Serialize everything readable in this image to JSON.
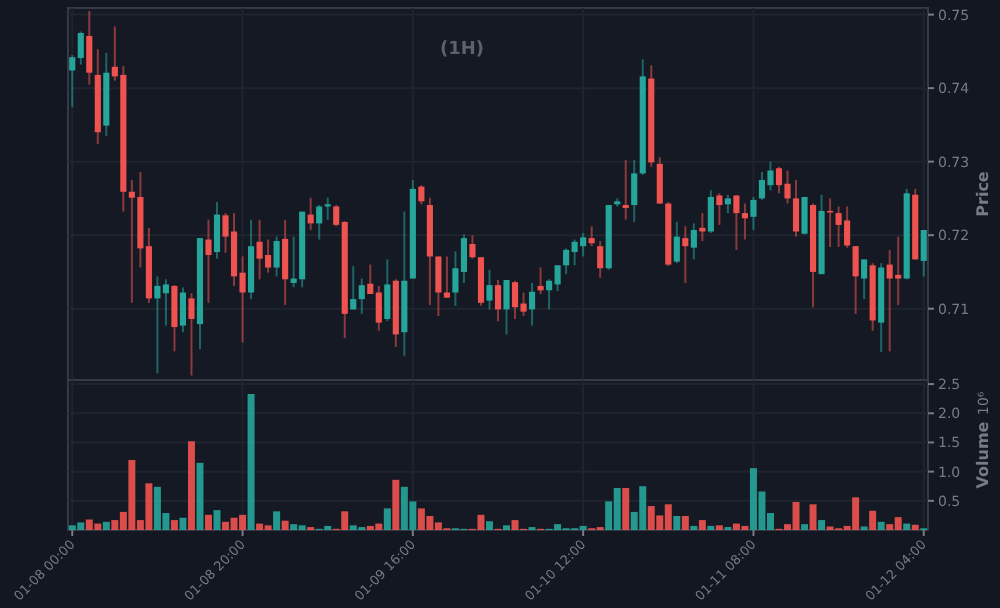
{
  "chart_data": [
    {
      "type": "candlestick",
      "title": "(1H)",
      "ylabel": "Price",
      "grid": true,
      "tick_labels": "y",
      "categories": [
        null,
        null,
        null,
        null,
        null,
        null,
        null,
        null,
        null,
        null,
        null,
        null,
        null,
        null,
        null,
        null,
        null,
        null,
        null,
        null,
        null,
        null,
        null,
        null,
        null,
        null,
        null,
        null,
        null,
        null,
        null,
        null,
        null,
        null,
        null,
        null,
        null,
        null,
        null,
        null,
        null,
        null,
        null,
        null,
        null,
        null,
        null,
        null,
        null,
        null,
        null,
        null,
        null,
        null,
        null,
        null,
        null,
        null,
        null,
        null,
        null,
        null,
        null,
        null,
        null,
        null,
        null,
        null,
        null,
        null,
        null,
        null,
        null,
        null,
        null,
        null,
        null,
        null,
        null,
        null,
        null,
        null,
        null,
        null,
        null,
        null,
        null,
        null,
        null,
        null,
        null,
        null,
        null,
        null,
        null,
        null,
        null,
        null,
        null,
        null,
        null
      ],
      "ylim": [
        0.7003,
        0.7509
      ],
      "yticks": [
        0.71,
        0.72,
        0.73,
        0.74,
        0.75
      ],
      "ohlc": [
        [
          0.7424,
          0.7445,
          0.7374,
          0.7442
        ],
        [
          0.7441,
          0.7477,
          0.7432,
          0.7475
        ],
        [
          0.7471,
          0.7505,
          0.7405,
          0.7421
        ],
        [
          0.7418,
          0.7453,
          0.7324,
          0.734
        ],
        [
          0.7349,
          0.7448,
          0.7335,
          0.7421
        ],
        [
          0.7429,
          0.7484,
          0.741,
          0.7416
        ],
        [
          0.7418,
          0.743,
          0.7232,
          0.7259
        ],
        [
          0.7259,
          0.7275,
          0.7108,
          0.7251
        ],
        [
          0.7252,
          0.7286,
          0.7156,
          0.7182
        ],
        [
          0.7185,
          0.721,
          0.7108,
          0.7114
        ],
        [
          0.7114,
          0.7144,
          0.7012,
          0.7131
        ],
        [
          0.7121,
          0.714,
          0.7077,
          0.7133
        ],
        [
          0.7131,
          0.7132,
          0.7042,
          0.7075
        ],
        [
          0.7077,
          0.7129,
          0.7068,
          0.7122
        ],
        [
          0.7114,
          0.7121,
          0.7009,
          0.7086
        ],
        [
          0.7079,
          0.7196,
          0.7045,
          0.7196
        ],
        [
          0.7194,
          0.7221,
          0.7108,
          0.7173
        ],
        [
          0.7177,
          0.7245,
          0.7168,
          0.7228
        ],
        [
          0.7227,
          0.723,
          0.7176,
          0.7198
        ],
        [
          0.7205,
          0.723,
          0.7131,
          0.7144
        ],
        [
          0.7149,
          0.7171,
          0.7054,
          0.7122
        ],
        [
          0.7122,
          0.7221,
          0.7113,
          0.7185
        ],
        [
          0.7191,
          0.7221,
          0.714,
          0.7168
        ],
        [
          0.7173,
          0.7194,
          0.7149,
          0.7156
        ],
        [
          0.7156,
          0.7198,
          0.7144,
          0.7192
        ],
        [
          0.7195,
          0.7221,
          0.7105,
          0.714
        ],
        [
          0.7135,
          0.7198,
          0.7129,
          0.7141
        ],
        [
          0.714,
          0.7232,
          0.7129,
          0.7232
        ],
        [
          0.7228,
          0.7251,
          0.7207,
          0.7216
        ],
        [
          0.7216,
          0.7241,
          0.7194,
          0.7239
        ],
        [
          0.7239,
          0.7251,
          0.7221,
          0.7242
        ],
        [
          0.7239,
          0.7241,
          0.7212,
          0.7214
        ],
        [
          0.7218,
          0.7219,
          0.706,
          0.7093
        ],
        [
          0.7099,
          0.7158,
          0.7099,
          0.7113
        ],
        [
          0.7113,
          0.7141,
          0.7093,
          0.7132
        ],
        [
          0.7134,
          0.716,
          0.712,
          0.712
        ],
        [
          0.7122,
          0.7131,
          0.707,
          0.7081
        ],
        [
          0.7086,
          0.7167,
          0.7083,
          0.7133
        ],
        [
          0.7138,
          0.714,
          0.7048,
          0.7065
        ],
        [
          0.7068,
          0.7232,
          0.7036,
          0.7138
        ],
        [
          0.7141,
          0.7275,
          0.7141,
          0.7263
        ],
        [
          0.7266,
          0.7268,
          0.7242,
          0.7246
        ],
        [
          0.7241,
          0.7251,
          0.7105,
          0.7171
        ],
        [
          0.7171,
          0.7171,
          0.709,
          0.7122
        ],
        [
          0.7122,
          0.7171,
          0.7115,
          0.7115
        ],
        [
          0.7122,
          0.7178,
          0.7104,
          0.7155
        ],
        [
          0.715,
          0.7201,
          0.7135,
          0.7196
        ],
        [
          0.7188,
          0.72,
          0.7168,
          0.717
        ],
        [
          0.717,
          0.717,
          0.7104,
          0.7108
        ],
        [
          0.7111,
          0.7153,
          0.7099,
          0.7132
        ],
        [
          0.7132,
          0.7139,
          0.7083,
          0.7099
        ],
        [
          0.7099,
          0.7139,
          0.7065,
          0.7139
        ],
        [
          0.7136,
          0.7138,
          0.7086,
          0.7102
        ],
        [
          0.7107,
          0.7122,
          0.709,
          0.7096
        ],
        [
          0.7099,
          0.7135,
          0.7077,
          0.7123
        ],
        [
          0.7131,
          0.7156,
          0.712,
          0.7125
        ],
        [
          0.7125,
          0.714,
          0.7099,
          0.7138
        ],
        [
          0.7133,
          0.7159,
          0.7124,
          0.7159
        ],
        [
          0.7159,
          0.7182,
          0.7147,
          0.718
        ],
        [
          0.7177,
          0.7194,
          0.7159,
          0.7191
        ],
        [
          0.7185,
          0.7203,
          0.7171,
          0.7197
        ],
        [
          0.7196,
          0.7212,
          0.7185,
          0.7189
        ],
        [
          0.7185,
          0.7192,
          0.7142,
          0.7155
        ],
        [
          0.7155,
          0.7241,
          0.7153,
          0.7241
        ],
        [
          0.7242,
          0.725,
          0.7239,
          0.7246
        ],
        [
          0.7241,
          0.7302,
          0.7221,
          0.7237
        ],
        [
          0.7241,
          0.7302,
          0.7218,
          0.7284
        ],
        [
          0.7284,
          0.7439,
          0.7282,
          0.7416
        ],
        [
          0.7413,
          0.7431,
          0.7293,
          0.7299
        ],
        [
          0.7297,
          0.7306,
          0.7243,
          0.7243
        ],
        [
          0.7243,
          0.7245,
          0.7158,
          0.716
        ],
        [
          0.7164,
          0.7218,
          0.7162,
          0.7198
        ],
        [
          0.7196,
          0.7212,
          0.7135,
          0.7185
        ],
        [
          0.7183,
          0.7216,
          0.7167,
          0.7207
        ],
        [
          0.721,
          0.723,
          0.7192,
          0.7205
        ],
        [
          0.7205,
          0.7261,
          0.7203,
          0.7252
        ],
        [
          0.7254,
          0.7257,
          0.7214,
          0.7241
        ],
        [
          0.7242,
          0.7255,
          0.723,
          0.725
        ],
        [
          0.7254,
          0.7254,
          0.718,
          0.723
        ],
        [
          0.723,
          0.7243,
          0.7194,
          0.7223
        ],
        [
          0.7225,
          0.7252,
          0.7207,
          0.7248
        ],
        [
          0.725,
          0.7286,
          0.7248,
          0.7275
        ],
        [
          0.7268,
          0.73,
          0.7261,
          0.7288
        ],
        [
          0.7291,
          0.7293,
          0.7257,
          0.7268
        ],
        [
          0.727,
          0.7288,
          0.7243,
          0.725
        ],
        [
          0.725,
          0.7275,
          0.7198,
          0.7205
        ],
        [
          0.7202,
          0.7252,
          0.7201,
          0.7252
        ],
        [
          0.7241,
          0.7243,
          0.7102,
          0.715
        ],
        [
          0.7147,
          0.7255,
          0.7147,
          0.7233
        ],
        [
          0.7233,
          0.725,
          0.7184,
          0.7232
        ],
        [
          0.723,
          0.7239,
          0.7184,
          0.7214
        ],
        [
          0.722,
          0.7239,
          0.7183,
          0.7186
        ],
        [
          0.7185,
          0.7185,
          0.7093,
          0.7144
        ],
        [
          0.7141,
          0.7167,
          0.7113,
          0.7167
        ],
        [
          0.7159,
          0.7162,
          0.707,
          0.7084
        ],
        [
          0.7081,
          0.7162,
          0.7041,
          0.7156
        ],
        [
          0.716,
          0.718,
          0.7042,
          0.7141
        ],
        [
          0.7146,
          0.7198,
          0.7105,
          0.7141
        ],
        [
          0.7141,
          0.7263,
          0.714,
          0.7257
        ],
        [
          0.7255,
          0.7263,
          0.7167,
          0.7167
        ],
        [
          0.7165,
          0.7207,
          0.7144,
          0.7207
        ]
      ],
      "colors": [
        "#26a69a",
        "#26a69a",
        "#ef5350",
        "#ef5350",
        "#26a69a",
        "#ef5350",
        "#ef5350",
        "#ef5350",
        "#ef5350",
        "#ef5350",
        "#26a69a",
        "#26a69a",
        "#ef5350",
        "#26a69a",
        "#ef5350",
        "#26a69a",
        "#ef5350",
        "#26a69a",
        "#ef5350",
        "#ef5350",
        "#ef5350",
        "#26a69a",
        "#ef5350",
        "#ef5350",
        "#26a69a",
        "#ef5350",
        "#26a69a",
        "#26a69a",
        "#ef5350",
        "#26a69a",
        "#26a69a",
        "#ef5350",
        "#ef5350",
        "#26a69a",
        "#26a69a",
        "#ef5350",
        "#ef5350",
        "#26a69a",
        "#ef5350",
        "#26a69a",
        "#26a69a",
        "#ef5350",
        "#ef5350",
        "#ef5350",
        "#ef5350",
        "#26a69a",
        "#26a69a",
        "#ef5350",
        "#ef5350",
        "#26a69a",
        "#ef5350",
        "#26a69a",
        "#ef5350",
        "#ef5350",
        "#26a69a",
        "#ef5350",
        "#26a69a",
        "#26a69a",
        "#26a69a",
        "#26a69a",
        "#26a69a",
        "#ef5350",
        "#ef5350",
        "#26a69a",
        "#26a69a",
        "#ef5350",
        "#26a69a",
        "#26a69a",
        "#ef5350",
        "#ef5350",
        "#ef5350",
        "#26a69a",
        "#ef5350",
        "#26a69a",
        "#ef5350",
        "#26a69a",
        "#ef5350",
        "#26a69a",
        "#ef5350",
        "#ef5350",
        "#26a69a",
        "#26a69a",
        "#26a69a",
        "#ef5350",
        "#ef5350",
        "#ef5350",
        "#26a69a",
        "#ef5350",
        "#26a69a",
        "#ef5350",
        "#ef5350",
        "#ef5350",
        "#ef5350",
        "#26a69a",
        "#ef5350",
        "#26a69a",
        "#ef5350",
        "#ef5350",
        "#26a69a",
        "#ef5350",
        "#26a69a"
      ]
    },
    {
      "type": "bar",
      "ylabel": "Volume",
      "annotations": [
        "10⁶"
      ],
      "grid": true,
      "categories": [
        "01-08 00:00",
        null,
        null,
        null,
        null,
        null,
        null,
        null,
        null,
        null,
        null,
        null,
        null,
        null,
        null,
        null,
        null,
        null,
        null,
        null,
        "01-08 20:00",
        null,
        null,
        null,
        null,
        null,
        null,
        null,
        null,
        null,
        null,
        null,
        null,
        null,
        null,
        null,
        null,
        null,
        null,
        null,
        "01-09 16:00",
        null,
        null,
        null,
        null,
        null,
        null,
        null,
        null,
        null,
        null,
        null,
        null,
        null,
        null,
        null,
        null,
        null,
        null,
        null,
        "01-10 12:00",
        null,
        null,
        null,
        null,
        null,
        null,
        null,
        null,
        null,
        null,
        null,
        null,
        null,
        null,
        null,
        null,
        null,
        null,
        null,
        "01-11 08:00",
        null,
        null,
        null,
        null,
        null,
        null,
        null,
        null,
        null,
        null,
        null,
        null,
        null,
        null,
        null,
        null,
        null,
        null,
        null,
        "01-12 04:00"
      ],
      "ylim": [
        0,
        2.57
      ],
      "yticks": [
        0.5,
        {
          "value": 1,
          "label": "1.0"
        },
        1.5,
        {
          "value": 2,
          "label": "2.0"
        },
        2.5
      ],
      "values": [
        0.08,
        0.13,
        0.18,
        0.11,
        0.14,
        0.17,
        0.31,
        1.2,
        0.17,
        0.8,
        0.74,
        0.29,
        0.17,
        0.21,
        1.52,
        1.15,
        0.26,
        0.34,
        0.14,
        0.21,
        0.26,
        2.33,
        0.11,
        0.08,
        0.32,
        0.16,
        0.1,
        0.08,
        0.05,
        0.02,
        0.07,
        0.02,
        0.32,
        0.08,
        0.05,
        0.07,
        0.11,
        0.37,
        0.86,
        0.74,
        0.49,
        0.37,
        0.24,
        0.13,
        0.03,
        0.03,
        0.02,
        0.02,
        0.26,
        0.15,
        0.02,
        0.08,
        0.17,
        0.02,
        0.05,
        0.02,
        0.02,
        0.1,
        0.03,
        0.03,
        0.07,
        0.03,
        0.05,
        0.49,
        0.72,
        0.72,
        0.31,
        0.75,
        0.41,
        0.25,
        0.44,
        0.24,
        0.24,
        0.07,
        0.17,
        0.07,
        0.08,
        0.05,
        0.11,
        0.07,
        1.06,
        0.66,
        0.29,
        0.02,
        0.1,
        0.48,
        0.1,
        0.44,
        0.17,
        0.06,
        0.03,
        0.07,
        0.56,
        0.06,
        0.33,
        0.14,
        0.1,
        0.22,
        0.11,
        0.09,
        0.03
      ],
      "colors": [
        "#26a69a",
        "#26a69a",
        "#ef5350",
        "#ef5350",
        "#26a69a",
        "#ef5350",
        "#ef5350",
        "#ef5350",
        "#ef5350",
        "#ef5350",
        "#26a69a",
        "#26a69a",
        "#ef5350",
        "#26a69a",
        "#ef5350",
        "#26a69a",
        "#ef5350",
        "#26a69a",
        "#ef5350",
        "#ef5350",
        "#ef5350",
        "#26a69a",
        "#ef5350",
        "#ef5350",
        "#26a69a",
        "#ef5350",
        "#26a69a",
        "#26a69a",
        "#ef5350",
        "#26a69a",
        "#26a69a",
        "#ef5350",
        "#ef5350",
        "#26a69a",
        "#26a69a",
        "#ef5350",
        "#ef5350",
        "#26a69a",
        "#ef5350",
        "#26a69a",
        "#26a69a",
        "#ef5350",
        "#ef5350",
        "#ef5350",
        "#ef5350",
        "#26a69a",
        "#26a69a",
        "#ef5350",
        "#ef5350",
        "#26a69a",
        "#ef5350",
        "#26a69a",
        "#ef5350",
        "#ef5350",
        "#26a69a",
        "#ef5350",
        "#26a69a",
        "#26a69a",
        "#26a69a",
        "#26a69a",
        "#26a69a",
        "#ef5350",
        "#ef5350",
        "#26a69a",
        "#26a69a",
        "#ef5350",
        "#26a69a",
        "#26a69a",
        "#ef5350",
        "#ef5350",
        "#ef5350",
        "#26a69a",
        "#ef5350",
        "#26a69a",
        "#ef5350",
        "#26a69a",
        "#ef5350",
        "#26a69a",
        "#ef5350",
        "#ef5350",
        "#26a69a",
        "#26a69a",
        "#26a69a",
        "#ef5350",
        "#ef5350",
        "#ef5350",
        "#26a69a",
        "#ef5350",
        "#26a69a",
        "#ef5350",
        "#ef5350",
        "#ef5350",
        "#ef5350",
        "#26a69a",
        "#ef5350",
        "#26a69a",
        "#ef5350",
        "#ef5350",
        "#26a69a",
        "#ef5350",
        "#26a69a"
      ]
    }
  ]
}
